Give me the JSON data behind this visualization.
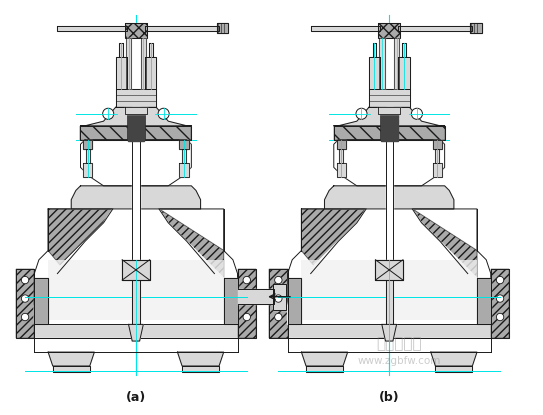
{
  "background_color": "#ffffff",
  "label_a": "(a)",
  "label_b": "(b)",
  "watermark_cn": "中国泵阀网",
  "watermark_url": "www.zgbfw.com",
  "fig_width": 5.43,
  "fig_height": 4.15,
  "dpi": 100,
  "cyan": "#00e5e5",
  "black": "#1a1a1a",
  "white": "#ffffff",
  "ltgray": "#d8d8d8",
  "mdgray": "#aaaaaa",
  "dkgray": "#444444",
  "hatch_gray": "#888888"
}
